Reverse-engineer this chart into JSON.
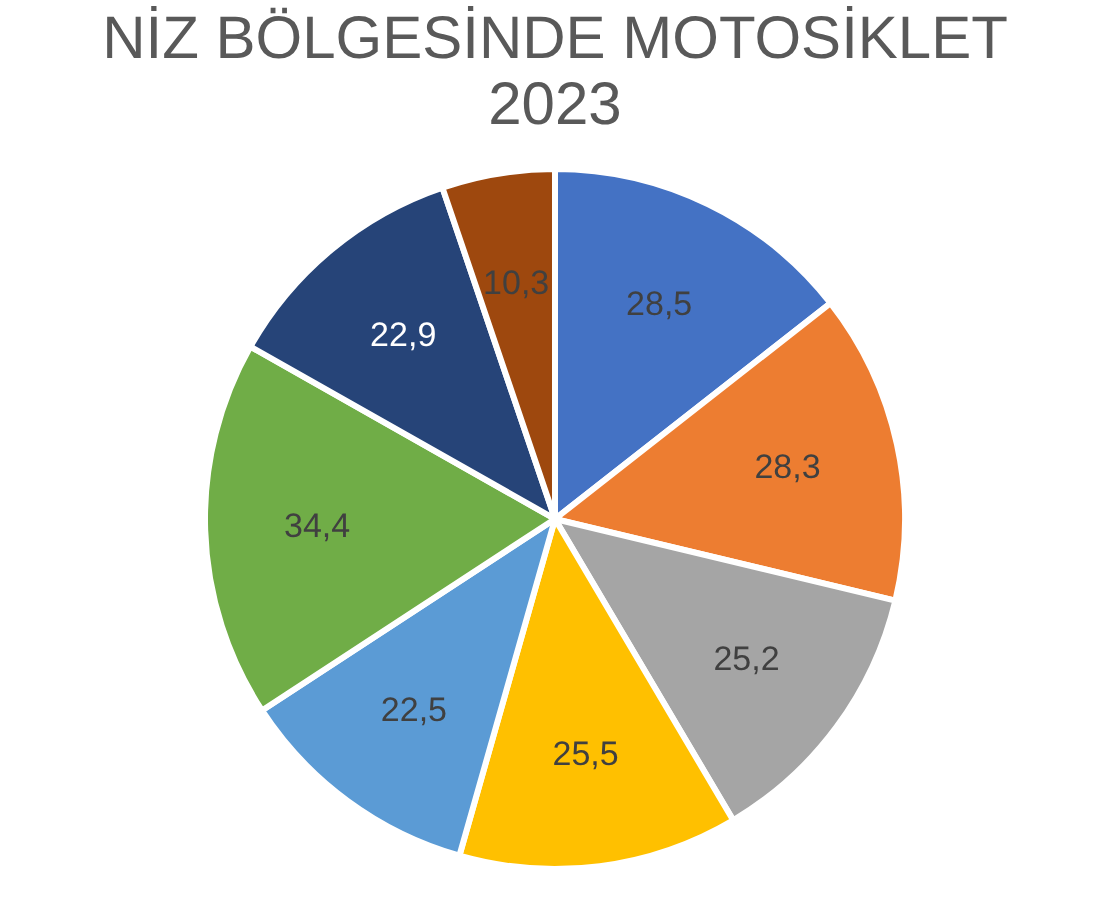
{
  "chart_data": {
    "type": "pie",
    "title": "NİZ BÖLGESİNDE MOTOSİKLET",
    "subtitle": "2023",
    "categories": [
      null,
      null,
      null,
      null,
      null,
      null,
      null,
      null
    ],
    "values": [
      28.5,
      28.3,
      25.2,
      25.5,
      22.5,
      34.4,
      22.9,
      10.3
    ],
    "colors": [
      "#4472c4",
      "#ed7d31",
      "#a5a5a5",
      "#ffc000",
      "#5b9bd5",
      "#70ad47",
      "#264478",
      "#9e480e"
    ],
    "value_labels": [
      "28,5",
      "28,3",
      "25,2",
      "25,5",
      "22,5",
      "34,4",
      "22,9",
      "10,3"
    ],
    "legend": false
  }
}
